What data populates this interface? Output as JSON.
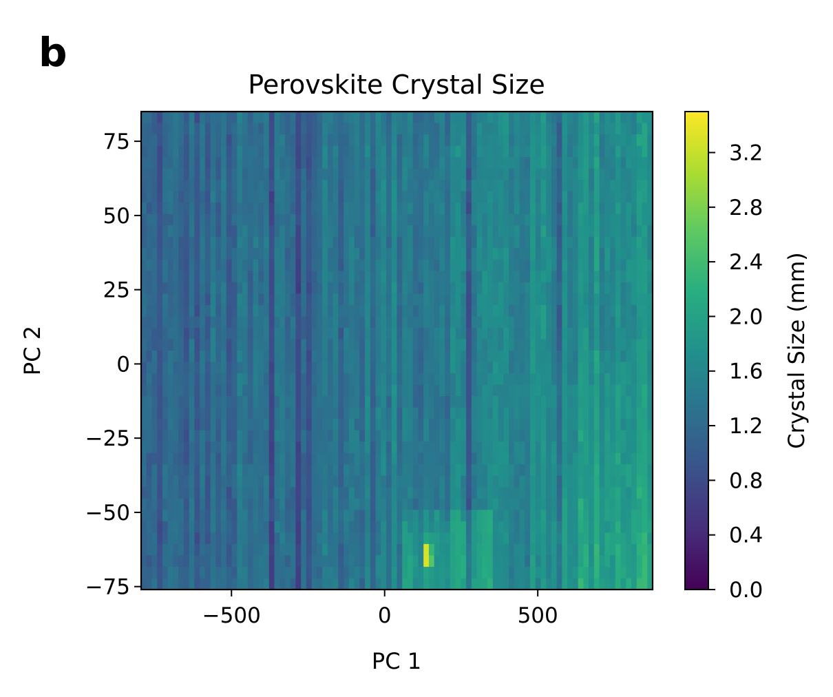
{
  "panel_label": "b",
  "chart_data": {
    "type": "heatmap",
    "title": "Perovskite Crystal Size",
    "xlabel": "PC 1",
    "ylabel": "PC 2",
    "xlim": [
      -795,
      875
    ],
    "ylim": [
      -76,
      85
    ],
    "xticks": [
      -500,
      0,
      500
    ],
    "xtick_labels": [
      "−500",
      "0",
      "500"
    ],
    "yticks": [
      -75,
      -50,
      -25,
      0,
      25,
      50,
      75
    ],
    "ytick_labels": [
      "−75",
      "−50",
      "−25",
      "0",
      "25",
      "50",
      "75"
    ],
    "colorbar": {
      "label": "Crystal Size (mm)",
      "colormap": "viridis",
      "range": [
        0.0,
        3.5
      ],
      "ticks": [
        0.0,
        0.4,
        0.8,
        1.2,
        1.6,
        2.0,
        2.4,
        2.8,
        3.2
      ],
      "tick_labels": [
        "0.0",
        "0.4",
        "0.8",
        "1.2",
        "1.6",
        "2.0",
        "2.4",
        "2.8",
        "3.2"
      ]
    },
    "trend": "Crystal size increases with PC 1: mostly 0.4–1.2 mm at negative PC 1, 1.4–2.2 mm at positive PC 1, with peaks near 2.4–3.4 mm at low PC 2 (around PC 1 ≈ 150, PC 2 ≈ −65 and PC 1 ≈ 700, PC 2 ≈ −50).",
    "grid": false
  }
}
